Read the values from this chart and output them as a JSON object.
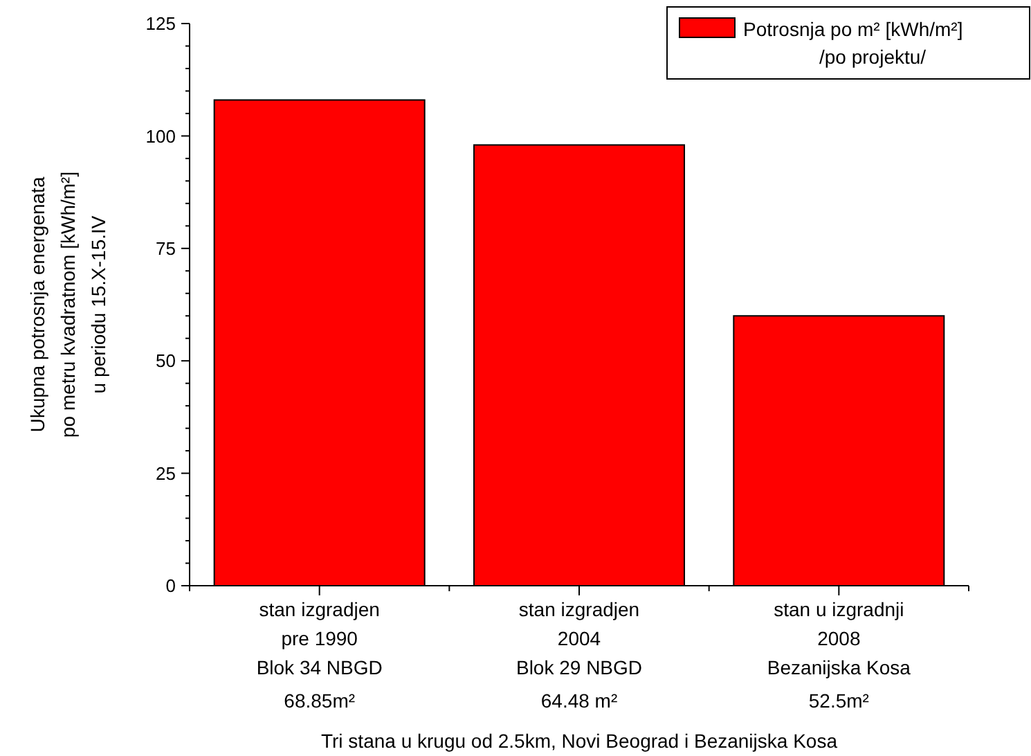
{
  "chart_data": {
    "type": "bar",
    "categories": [
      "stan izgradjen\npre 1990\nBlok 34 NBGD\n68.85m²",
      "stan izgradjen\n2004\nBlok 29 NBGD\n64.48 m²",
      "stan u izgradnji\n2008\nBezanijska Kosa\n52.5m²"
    ],
    "series": [
      {
        "name": "Potrosnja po m² [kWh/m²]\n/po projektu/",
        "color": "#ff0000",
        "values": [
          108,
          98,
          60
        ]
      }
    ],
    "xlabel": "Tri stana u krugu od 2.5km, Novi Beograd i Bezanijska Kosa",
    "ylabel": "Ukupna potrosnja energenata\npo metru kvadratnom [kWh/m²]\nu periodu 15.X-15.IV",
    "ylim": [
      0,
      125
    ],
    "yticks": [
      0,
      25,
      50,
      75,
      100,
      125
    ],
    "grid": false,
    "legend": "top right"
  }
}
